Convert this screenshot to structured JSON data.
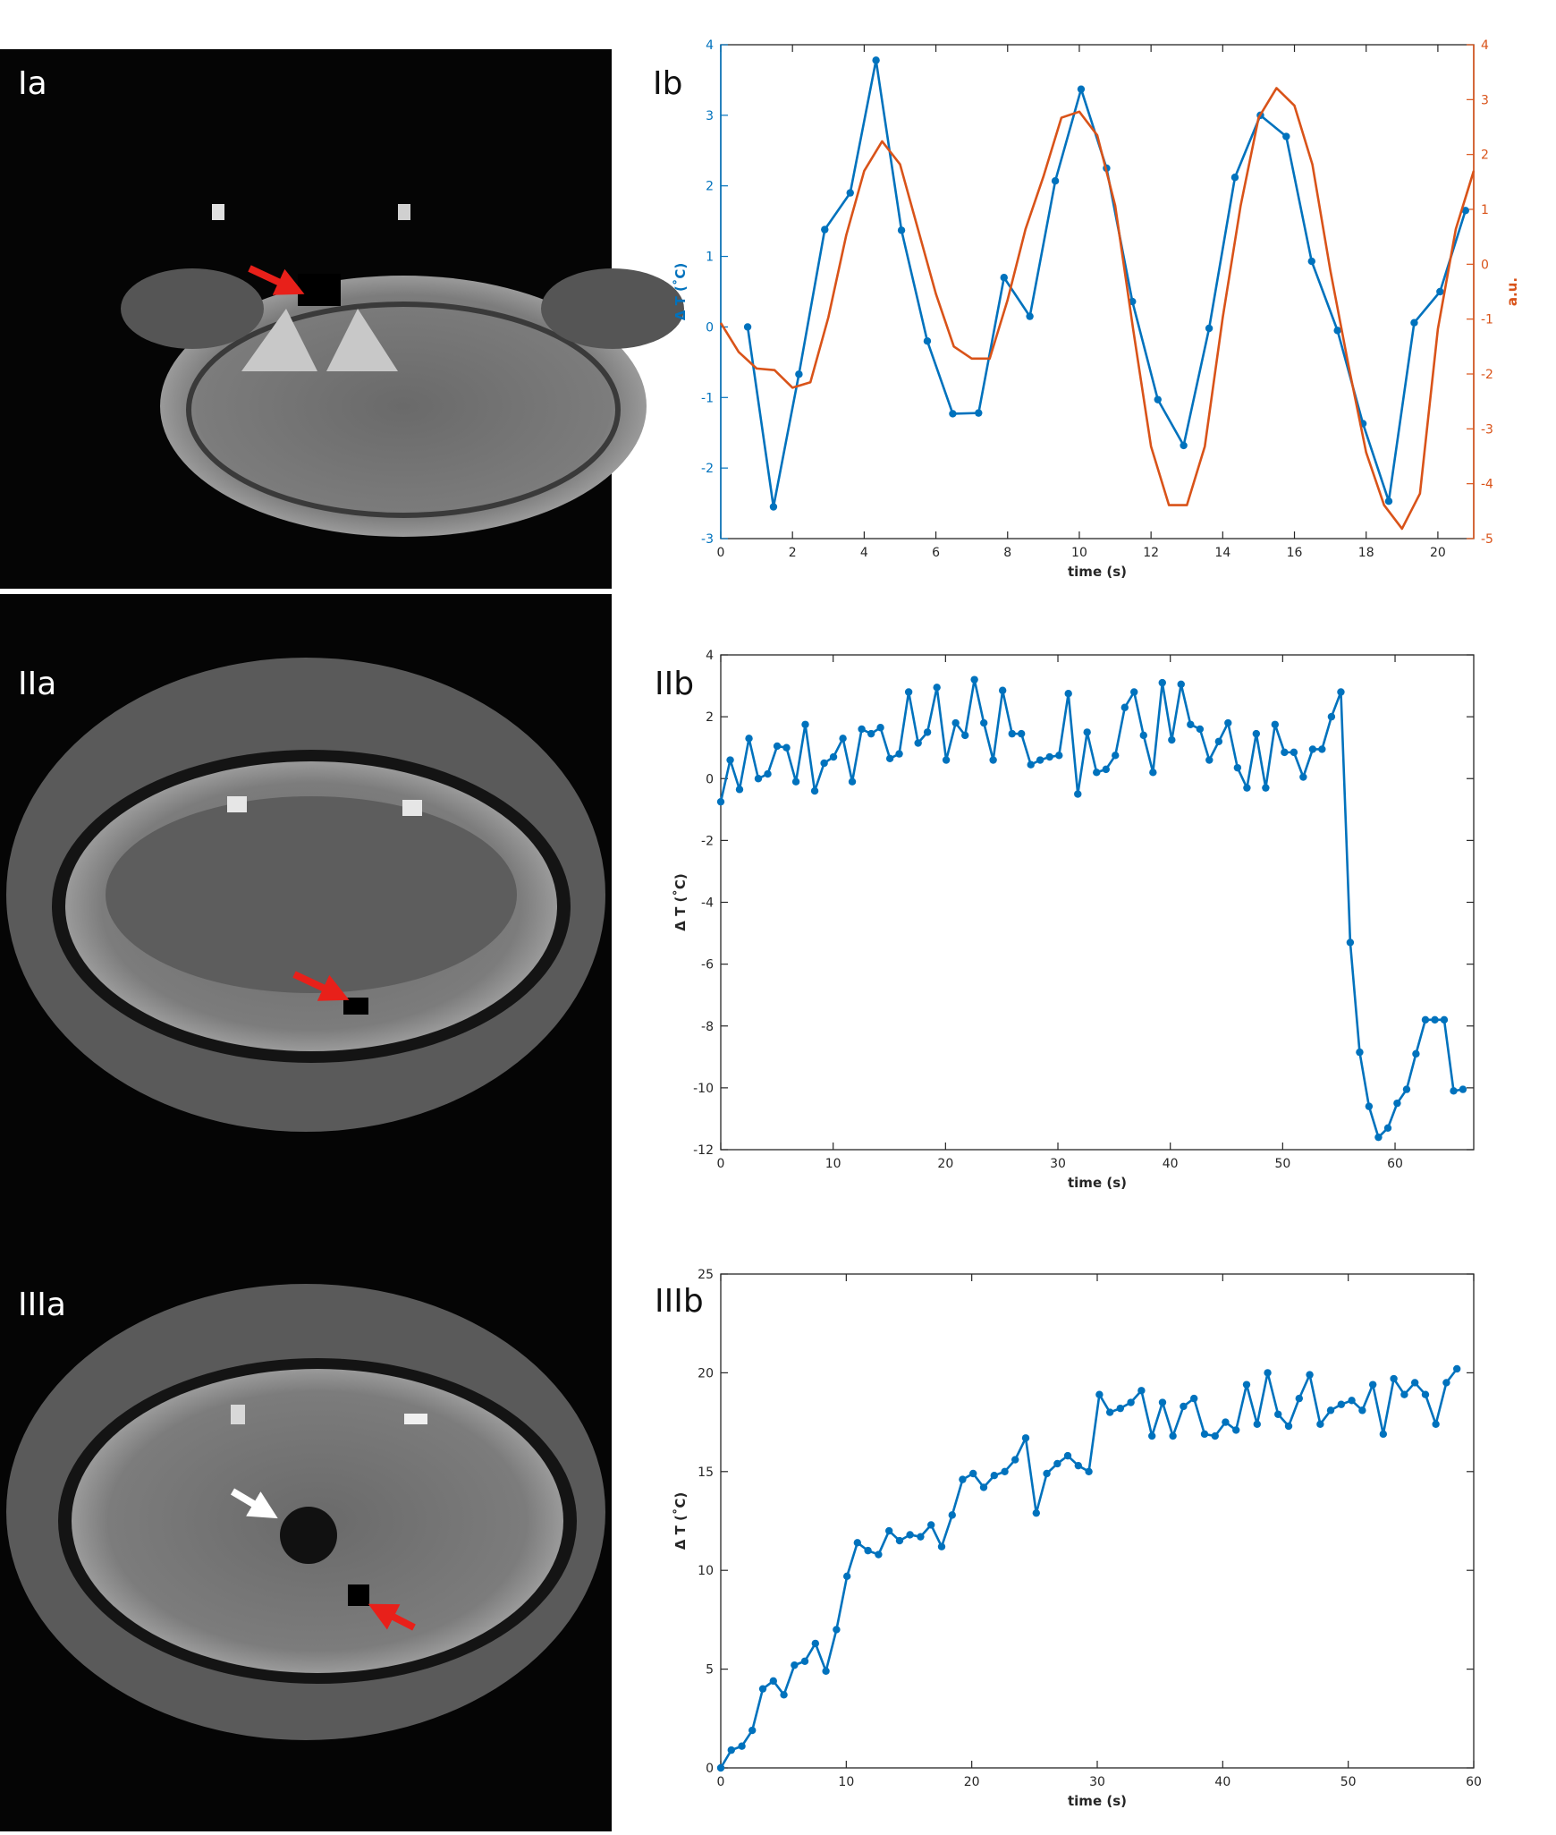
{
  "image_panels": [
    {
      "label": "Ia"
    },
    {
      "label": "IIa"
    },
    {
      "label": "IIIa"
    }
  ],
  "chart_data": [
    {
      "type": "line",
      "title": "Ib",
      "xlabel": "time (s)",
      "ylabel": "Δ T (˚C)",
      "y2label": "a.u.",
      "xlim": [
        0,
        21
      ],
      "xticks": [
        0,
        2,
        4,
        6,
        8,
        10,
        12,
        14,
        16,
        18,
        20
      ],
      "ylim": [
        -3,
        4
      ],
      "yticks": [
        -3,
        -2,
        -1,
        0,
        1,
        2,
        3,
        4
      ],
      "y2lim": [
        -5,
        4
      ],
      "y2ticks": [
        -5,
        -4,
        -3,
        -2,
        -1,
        0,
        1,
        2,
        3,
        4
      ],
      "ycolor": "#0072bd",
      "y2color": "#d95319",
      "series": [
        {
          "color": "#0072bd",
          "markers": true,
          "x": [
            0.75,
            1.47,
            2.18,
            2.9,
            3.61,
            4.33,
            5.04,
            5.76,
            6.47,
            7.19,
            7.9,
            8.62,
            9.33,
            10.05,
            10.76,
            11.48,
            12.19,
            12.91,
            13.62,
            14.34,
            15.05,
            15.77,
            16.48,
            17.2,
            17.91,
            18.63,
            19.34,
            20.06,
            20.77
          ],
          "values": [
            0,
            -2.55,
            -0.67,
            1.38,
            1.9,
            3.78,
            1.37,
            -0.2,
            -1.23,
            -1.22,
            0.7,
            0.15,
            2.07,
            3.37,
            2.25,
            0.36,
            -1.03,
            -1.68,
            -0.02,
            2.12,
            3.0,
            2.7,
            0.93,
            -0.05,
            -1.37,
            -2.47,
            0.06,
            0.5,
            1.65
          ]
        },
        {
          "color": "#d95319",
          "markers": false,
          "axis": "y2",
          "x": [
            0,
            0.5,
            1,
            1.5,
            2,
            2.5,
            3,
            3.5,
            4,
            4.5,
            5,
            5.5,
            6,
            6.5,
            7,
            7.5,
            8,
            8.5,
            9,
            9.5,
            10,
            10.5,
            11,
            11.5,
            12,
            12.5,
            13,
            13.5,
            14,
            14.5,
            15,
            15.5,
            16,
            16.5,
            17,
            17.5,
            18,
            18.5,
            19,
            19.5,
            20,
            20.5,
            21
          ],
          "values": [
            -1.07,
            -1.6,
            -1.9,
            -1.93,
            -2.25,
            -2.15,
            -0.97,
            0.53,
            1.7,
            2.24,
            1.82,
            0.64,
            -0.54,
            -1.5,
            -1.72,
            -1.72,
            -0.65,
            0.64,
            1.6,
            2.67,
            2.78,
            2.35,
            1.07,
            -1.18,
            -3.32,
            -4.39,
            -4.39,
            -3.32,
            -0.97,
            1.07,
            2.67,
            3.21,
            2.89,
            1.82,
            -0.11,
            -1.82,
            -3.43,
            -4.39,
            -4.82,
            -4.18,
            -1.18,
            0.64,
            1.7
          ]
        }
      ]
    },
    {
      "type": "line",
      "title": "IIb",
      "xlabel": "time (s)",
      "ylabel": "Δ T (˚C)",
      "xlim": [
        0,
        67
      ],
      "xticks": [
        0,
        10,
        20,
        30,
        40,
        50,
        60
      ],
      "ylim": [
        -12,
        4
      ],
      "yticks": [
        -12,
        -10,
        -8,
        -6,
        -4,
        -2,
        0,
        2,
        4
      ],
      "series": [
        {
          "color": "#0072bd",
          "markers": true,
          "x": [
            0,
            0.84,
            1.67,
            2.51,
            3.34,
            4.18,
            5.02,
            5.85,
            6.69,
            7.52,
            8.36,
            9.2,
            10.03,
            10.87,
            11.7,
            12.54,
            13.38,
            14.21,
            15.05,
            15.88,
            16.72,
            17.56,
            18.39,
            19.23,
            20.06,
            20.9,
            21.74,
            22.57,
            23.41,
            24.24,
            25.08,
            25.92,
            26.75,
            27.59,
            28.42,
            29.26,
            30.1,
            30.93,
            31.77,
            32.6,
            33.44,
            34.28,
            35.11,
            35.95,
            36.78,
            37.62,
            38.46,
            39.29,
            40.13,
            40.96,
            41.8,
            42.64,
            43.47,
            44.31,
            45.14,
            45.98,
            46.82,
            47.65,
            48.49,
            49.32,
            50.16,
            51.0,
            51.83,
            52.67,
            53.5,
            54.34,
            55.18,
            56.01,
            56.85,
            57.68,
            58.52,
            59.36,
            60.19,
            61.03,
            61.86,
            62.7,
            63.54,
            64.37,
            65.21,
            66.04
          ],
          "values": [
            -0.75,
            0.6,
            -0.35,
            1.3,
            0,
            0.15,
            1.05,
            1.0,
            -0.1,
            1.75,
            -0.4,
            0.5,
            0.7,
            1.3,
            -0.1,
            1.6,
            1.45,
            1.65,
            0.65,
            0.8,
            2.8,
            1.15,
            1.5,
            2.95,
            0.6,
            1.8,
            1.4,
            3.2,
            1.8,
            0.6,
            2.85,
            1.45,
            1.45,
            0.45,
            0.6,
            0.7,
            0.75,
            2.75,
            -0.5,
            1.5,
            0.2,
            0.3,
            0.75,
            2.3,
            2.8,
            1.4,
            0.2,
            3.1,
            1.25,
            3.05,
            1.75,
            1.6,
            0.6,
            1.2,
            1.8,
            0.35,
            -0.3,
            1.45,
            -0.3,
            1.75,
            0.85,
            0.85,
            0.05,
            0.95,
            0.95,
            2.0,
            2.8,
            -5.3,
            -8.85,
            -10.6,
            -11.6,
            -11.3,
            -10.5,
            -10.05,
            -8.9,
            -7.8,
            -7.8,
            -7.8,
            -10.1,
            -10.05
          ]
        }
      ]
    },
    {
      "type": "line",
      "title": "IIIb",
      "xlabel": "time (s)",
      "ylabel": "Δ T (˚C)",
      "xlim": [
        0,
        60
      ],
      "xticks": [
        0,
        10,
        20,
        30,
        40,
        50,
        60
      ],
      "ylim": [
        0,
        25
      ],
      "yticks": [
        0,
        5,
        10,
        15,
        20,
        25
      ],
      "series": [
        {
          "color": "#0072bd",
          "markers": true,
          "x": [
            0,
            0.84,
            1.68,
            2.51,
            3.35,
            4.19,
            5.03,
            5.87,
            6.7,
            7.54,
            8.38,
            9.22,
            10.06,
            10.89,
            11.73,
            12.57,
            13.41,
            14.25,
            15.08,
            15.92,
            16.76,
            17.6,
            18.44,
            19.27,
            20.11,
            20.95,
            21.79,
            22.63,
            23.46,
            24.3,
            25.14,
            25.98,
            26.82,
            27.65,
            28.49,
            29.33,
            30.17,
            31.01,
            31.84,
            32.68,
            33.52,
            34.36,
            35.2,
            36.03,
            36.87,
            37.71,
            38.55,
            39.39,
            40.22,
            41.06,
            41.9,
            42.74,
            43.58,
            44.41,
            45.25,
            46.09,
            46.93,
            47.77,
            48.6,
            49.44,
            50.28,
            51.12,
            51.96,
            52.79,
            53.63,
            54.47,
            55.31,
            56.15,
            56.98,
            57.82,
            58.66
          ],
          "values": [
            0,
            0.9,
            1.1,
            1.9,
            4.0,
            4.4,
            3.7,
            5.2,
            5.4,
            6.3,
            4.9,
            7.0,
            9.7,
            11.4,
            11.0,
            10.8,
            12.0,
            11.5,
            11.8,
            11.7,
            12.3,
            11.2,
            12.8,
            14.6,
            14.9,
            14.2,
            14.8,
            15.0,
            15.6,
            16.7,
            12.9,
            14.9,
            15.4,
            15.8,
            15.3,
            15.0,
            18.9,
            18.0,
            18.2,
            18.5,
            19.1,
            16.8,
            18.5,
            16.8,
            18.3,
            18.7,
            16.9,
            16.8,
            17.5,
            17.1,
            19.4,
            17.4,
            20.0,
            17.9,
            17.3,
            18.7,
            19.9,
            17.4,
            18.1,
            18.4,
            18.6,
            18.1,
            19.4,
            16.9,
            19.7,
            18.9,
            19.5,
            18.9,
            17.4,
            19.5,
            20.2
          ]
        }
      ]
    }
  ]
}
